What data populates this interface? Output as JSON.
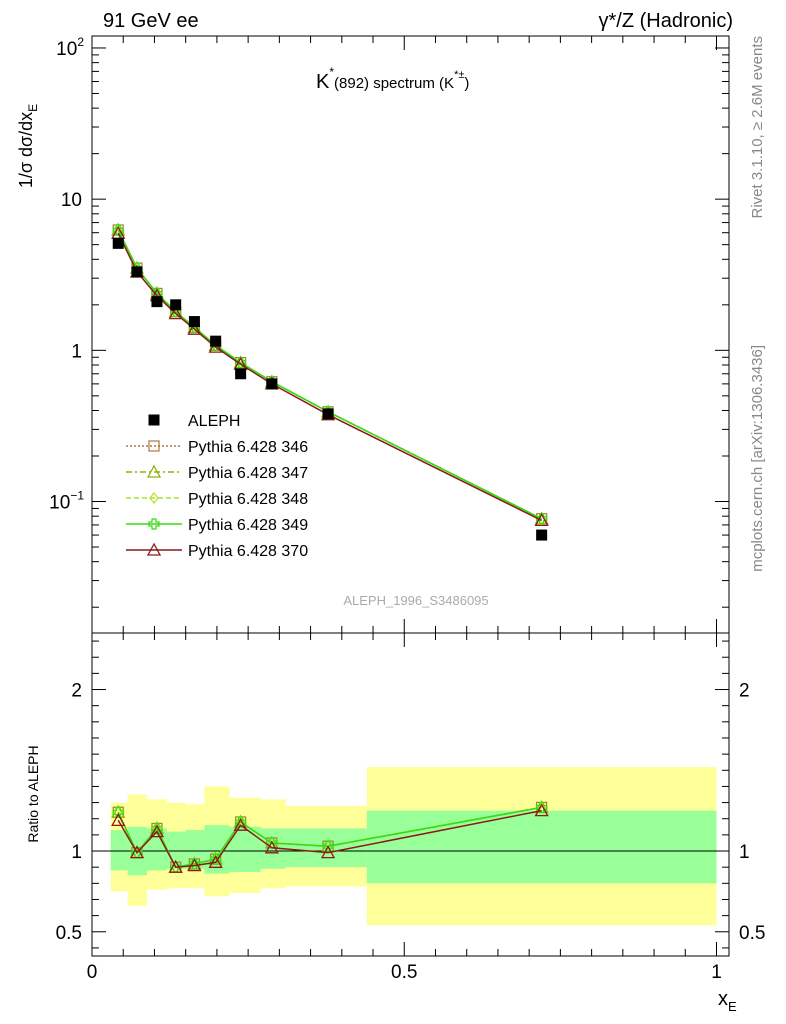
{
  "header": {
    "left": "91 GeV ee",
    "right": "γ*/Z (Hadronic)"
  },
  "side_text": {
    "rivet": "Rivet 3.1.10, ≥ 2.6M events",
    "site": "mcplots.cern.ch [arXiv:1306.3436]"
  },
  "chart_data": [
    {
      "type": "line",
      "title_main": "K",
      "title_sup": "*",
      "title_rest": "(892) spectrum (K",
      "title_sup2": "*±",
      "title_close": ")",
      "analysis_label": "ALEPH_1996_S3486095",
      "ylabel": "1/σ dσ/dx",
      "ylabel_sub": "E",
      "yscale": "log",
      "ylim": [
        0.0135,
        120
      ],
      "xlim": [
        0,
        1.02
      ],
      "y_tick_labels": [
        "10",
        "10",
        "1",
        "10",
        "10"
      ],
      "y_tick_label_exps": [
        "2",
        "",
        "",
        "−1",
        ""
      ],
      "legend_position": "middle-left",
      "data": {
        "name": "ALEPH",
        "x": [
          0.042,
          0.072,
          0.104,
          0.134,
          0.164,
          0.198,
          0.238,
          0.288,
          0.378,
          0.72
        ],
        "y": [
          5.1,
          3.3,
          2.1,
          2.0,
          1.55,
          1.15,
          0.7,
          0.6,
          0.38,
          0.06
        ]
      },
      "series": [
        {
          "name": "Pythia 6.428 346",
          "color": "#b07a3a",
          "dash": "2,2",
          "marker": "square-open",
          "y": [
            6.25,
            3.5,
            2.38,
            1.8,
            1.42,
            1.08,
            0.83,
            0.62,
            0.392,
            0.077
          ]
        },
        {
          "name": "Pythia 6.428 347",
          "color": "#8fb014",
          "dash": "6,3,2,3",
          "marker": "triangle-open",
          "y": [
            6.25,
            3.5,
            2.38,
            1.8,
            1.42,
            1.08,
            0.83,
            0.62,
            0.392,
            0.077
          ]
        },
        {
          "name": "Pythia 6.428 348",
          "color": "#a8e628",
          "dash": "5,3",
          "marker": "diamond-open",
          "y": [
            6.25,
            3.5,
            2.38,
            1.8,
            1.42,
            1.08,
            0.83,
            0.62,
            0.392,
            0.077
          ]
        },
        {
          "name": "Pythia 6.428 349",
          "color": "#33dd11",
          "dash": "",
          "marker": "cross-open",
          "y": [
            6.25,
            3.5,
            2.38,
            1.8,
            1.42,
            1.08,
            0.83,
            0.62,
            0.392,
            0.077
          ]
        },
        {
          "name": "Pythia 6.428 370",
          "color": "#8b1a1a",
          "dash": "",
          "marker": "triangle-open",
          "y": [
            5.95,
            3.3,
            2.3,
            1.75,
            1.38,
            1.05,
            0.81,
            0.6,
            0.375,
            0.075
          ]
        }
      ]
    },
    {
      "type": "line",
      "ylabel": "Ratio to ALEPH",
      "xlabel": "x",
      "xlabel_sub": "E",
      "ylim": [
        0.35,
        2.35
      ],
      "xlim": [
        0,
        1.02
      ],
      "y_tick_labels": [
        "0.5",
        "1",
        "2"
      ],
      "x_tick_labels": [
        "0",
        "0.5",
        "1"
      ],
      "bands": {
        "edges": [
          0.03,
          0.057,
          0.088,
          0.12,
          0.15,
          0.18,
          0.22,
          0.27,
          0.31,
          0.44,
          1.0
        ],
        "inner_lo": [
          0.88,
          0.85,
          0.88,
          0.89,
          0.89,
          0.86,
          0.87,
          0.89,
          0.9,
          0.8
        ],
        "inner_hi": [
          1.13,
          1.15,
          1.14,
          1.12,
          1.13,
          1.16,
          1.15,
          1.14,
          1.14,
          1.25
        ],
        "outer_lo": [
          0.75,
          0.66,
          0.76,
          0.77,
          0.77,
          0.72,
          0.74,
          0.77,
          0.78,
          0.54
        ],
        "outer_hi": [
          1.3,
          1.35,
          1.32,
          1.3,
          1.29,
          1.4,
          1.33,
          1.32,
          1.28,
          1.52
        ]
      },
      "series": [
        {
          "name": "Pythia 6.428 346",
          "y": [
            1.24,
            0.99,
            1.14,
            0.9,
            0.92,
            0.95,
            1.18,
            1.05,
            1.03,
            1.27
          ]
        },
        {
          "name": "Pythia 6.428 347",
          "y": [
            1.24,
            0.99,
            1.14,
            0.9,
            0.92,
            0.95,
            1.18,
            1.05,
            1.03,
            1.27
          ]
        },
        {
          "name": "Pythia 6.428 348",
          "y": [
            1.24,
            0.99,
            1.14,
            0.9,
            0.92,
            0.95,
            1.18,
            1.05,
            1.03,
            1.27
          ]
        },
        {
          "name": "Pythia 6.428 349",
          "y": [
            1.24,
            0.99,
            1.14,
            0.9,
            0.92,
            0.95,
            1.18,
            1.05,
            1.03,
            1.27
          ]
        },
        {
          "name": "Pythia 6.428 370",
          "y": [
            1.19,
            0.99,
            1.12,
            0.9,
            0.91,
            0.93,
            1.16,
            1.02,
            0.99,
            1.25
          ]
        }
      ],
      "colors": {
        "inner_band": "#99ff99",
        "outer_band": "#ffff99"
      }
    }
  ]
}
